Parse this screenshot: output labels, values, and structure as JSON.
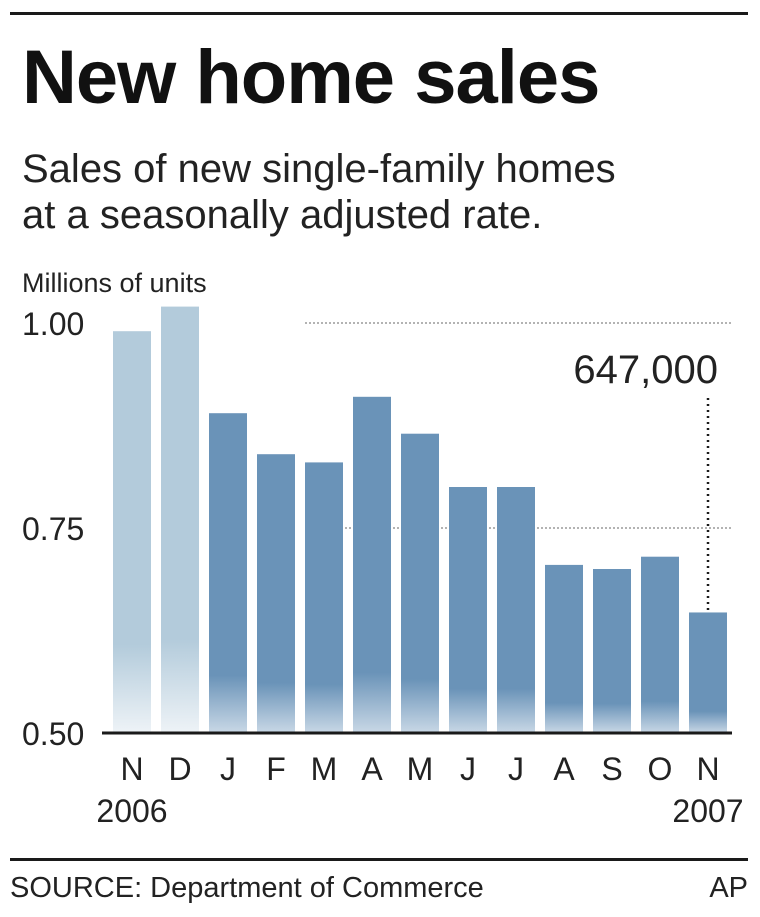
{
  "header": {
    "title": "New home sales",
    "subtitle_line1": "Sales of new single-family homes",
    "subtitle_line2": "at a seasonally adjusted rate."
  },
  "footer": {
    "source": "SOURCE: Department of Commerce",
    "credit": "AP"
  },
  "colors": {
    "bar_2006": "#b3cbdb",
    "bar_2007": "#6a93b8",
    "text": "#1a1a1a"
  },
  "chart_data": {
    "type": "bar",
    "title": "New home sales",
    "ylabel": "Millions of units",
    "categories": [
      "N",
      "D",
      "J",
      "F",
      "M",
      "A",
      "M",
      "J",
      "J",
      "A",
      "S",
      "O",
      "N"
    ],
    "year_labels": [
      {
        "index": 0,
        "label": "2006"
      },
      {
        "index": 12,
        "label": "2007"
      }
    ],
    "series": [
      {
        "values": [
          0.99,
          1.02,
          0.89,
          0.84,
          0.83,
          0.91,
          0.865,
          0.8,
          0.8,
          0.705,
          0.7,
          0.715,
          0.647
        ]
      }
    ],
    "highlight_index_start_2007": 2,
    "ylim": [
      0.5,
      1.0
    ],
    "yticks": [
      {
        "value": 0.5,
        "label": "0.50"
      },
      {
        "value": 0.75,
        "label": "0.75"
      },
      {
        "value": 1.0,
        "label": "1.00"
      }
    ],
    "annotation": {
      "index": 12,
      "label": "647,000"
    },
    "grid": true
  }
}
